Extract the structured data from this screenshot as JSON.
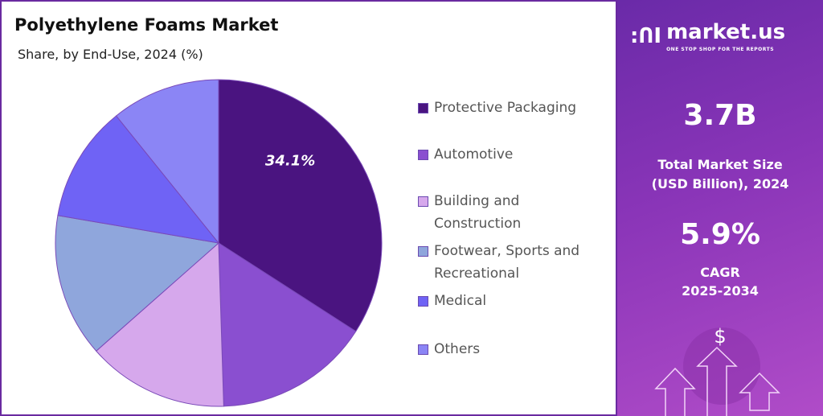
{
  "chart_data": {
    "type": "pie",
    "title": "Polyethylene Foams Market",
    "subtitle": "Share, by End-Use, 2024 (%)",
    "categories": [
      "Protective Packaging",
      "Automotive",
      "Building and Construction",
      "Footwear, Sports and Recreational",
      "Medical",
      "Others"
    ],
    "legend_lines": [
      [
        "Protective Packaging"
      ],
      [
        "Automotive"
      ],
      [
        "Building and",
        "Construction"
      ],
      [
        "Footwear, Sports and",
        "Recreational"
      ],
      [
        "Medical"
      ],
      [
        "Others"
      ]
    ],
    "values": [
      34.1,
      15.4,
      14.0,
      14.2,
      11.5,
      10.8
    ],
    "colors": [
      "#4a1480",
      "#8a4fd0",
      "#d6a8ec",
      "#8fa6dc",
      "#6f63f5",
      "#8b85f5"
    ],
    "data_labels": [
      "34.1%",
      "",
      "",
      "",
      "",
      ""
    ],
    "legend_position": "right"
  },
  "side": {
    "logo_name": "market.us",
    "logo_tagline": "ONE STOP SHOP FOR THE REPORTS",
    "market_size": "3.7B",
    "market_size_label": [
      "Total Market Size",
      "(USD Billion), 2024"
    ],
    "cagr": "5.9%",
    "cagr_label": [
      "CAGR",
      "2025-2034"
    ],
    "dollar": "$"
  }
}
